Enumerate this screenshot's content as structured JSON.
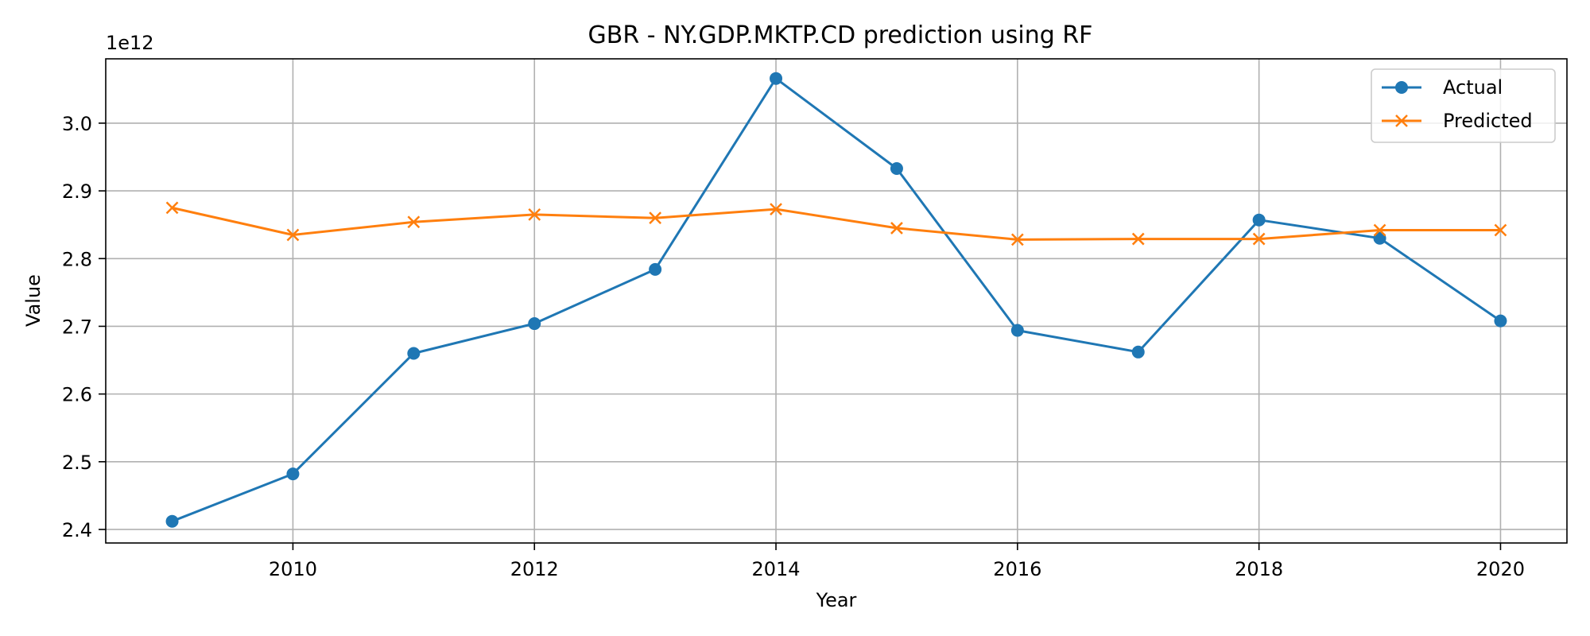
{
  "chart_data": {
    "type": "line",
    "title": "GBR - NY.GDP.MKTP.CD prediction using RF",
    "xlabel": "Year",
    "ylabel": "Value",
    "y_scale_note": "1e12",
    "x": [
      2009,
      2010,
      2011,
      2012,
      2013,
      2014,
      2015,
      2016,
      2017,
      2018,
      2019,
      2020
    ],
    "xlim": [
      2008.45,
      2020.55
    ],
    "ylim": [
      2.38,
      3.095
    ],
    "x_ticks": [
      2010,
      2012,
      2014,
      2016,
      2018,
      2020
    ],
    "x_tick_labels": [
      "2010",
      "2012",
      "2014",
      "2016",
      "2018",
      "2020"
    ],
    "y_ticks": [
      2.4,
      2.5,
      2.6,
      2.7,
      2.8,
      2.9,
      3.0
    ],
    "y_tick_labels": [
      "2.4",
      "2.5",
      "2.6",
      "2.7",
      "2.8",
      "2.9",
      "3.0"
    ],
    "grid": true,
    "legend_position": "top-right",
    "series": [
      {
        "name": "Actual",
        "color": "#1f77b4",
        "marker": "circle",
        "values": [
          2.412,
          2.482,
          2.66,
          2.704,
          2.784,
          3.066,
          2.933,
          2.694,
          2.662,
          2.857,
          2.83,
          2.708
        ]
      },
      {
        "name": "Predicted",
        "color": "#ff7f0e",
        "marker": "x",
        "values": [
          2.875,
          2.835,
          2.854,
          2.865,
          2.86,
          2.873,
          2.845,
          2.828,
          2.829,
          2.829,
          2.842,
          2.842
        ]
      }
    ]
  }
}
